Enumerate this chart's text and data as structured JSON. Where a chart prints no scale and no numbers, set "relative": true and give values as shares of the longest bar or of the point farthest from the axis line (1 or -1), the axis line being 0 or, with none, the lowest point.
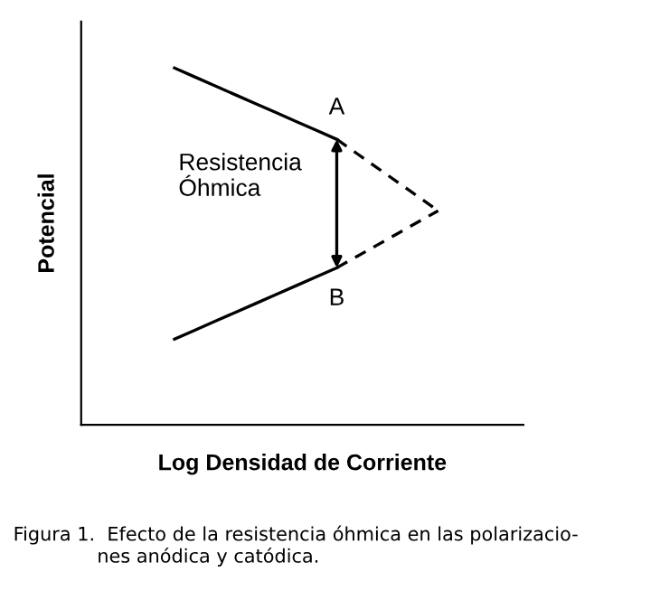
{
  "chart_data": {
    "type": "line",
    "relative": true,
    "xlabel": "Log Densidad de Corriente",
    "ylabel": "Potencial",
    "categories": [
      null,
      null,
      null,
      null,
      null,
      null,
      null,
      null,
      null,
      null,
      null,
      null,
      null,
      null
    ],
    "series": [
      {
        "values": [
          1,
          0.975,
          0.95,
          0.925,
          0.9,
          0.875,
          0.85,
          0.825,
          0.8,
          null,
          null,
          null,
          null,
          null
        ],
        "color": "#000000",
        "line_style": "solid"
      },
      {
        "values": [
          null,
          null,
          null,
          null,
          null,
          null,
          null,
          null,
          0.8,
          0.76,
          0.72,
          0.68,
          0.64,
          0.6
        ],
        "color": "#000000",
        "line_style": "dashed"
      },
      {
        "values": [
          0.24,
          0.265,
          0.29,
          0.315,
          0.34,
          0.365,
          0.39,
          0.415,
          0.44,
          null,
          null,
          null,
          null,
          null
        ],
        "color": "#000000",
        "line_style": "solid"
      },
      {
        "values": [
          null,
          null,
          null,
          null,
          null,
          null,
          null,
          null,
          0.44,
          0.472,
          0.504,
          0.536,
          0.568,
          0.6
        ],
        "color": "#000000",
        "line_style": "dashed"
      }
    ],
    "annotations": [
      "A",
      "B",
      "Resistencia\nÓhmica",
      "Figura 1.  Efecto de la resistencia óhmica en las polarizacio-\n              nes anódica y catódica."
    ]
  }
}
